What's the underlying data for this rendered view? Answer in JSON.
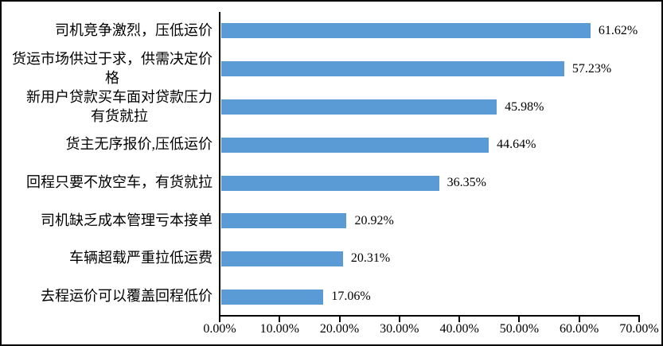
{
  "chart_data": {
    "type": "bar",
    "orientation": "horizontal",
    "title": "",
    "categories": [
      "司机竞争激烈，压低运价",
      "货运市场供过于求，供需决定价\n格",
      "新用户贷款买车面对贷款压力\n有货就拉",
      "货主无序报价,压低运价",
      "回程只要不放空车，有货就拉",
      "司机缺乏成本管理亏本接单",
      "车辆超载严重拉低运费",
      "去程运价可以覆盖回程低价"
    ],
    "values": [
      61.62,
      57.23,
      45.98,
      44.64,
      36.35,
      20.92,
      20.31,
      17.06
    ],
    "value_labels": [
      "61.62%",
      "57.23%",
      "45.98%",
      "44.64%",
      "36.35%",
      "20.92%",
      "20.31%",
      "17.06%"
    ],
    "x_ticks": [
      "0.00%",
      "10.00%",
      "20.00%",
      "30.00%",
      "40.00%",
      "50.00%",
      "60.00%",
      "70.00%"
    ],
    "xlim": [
      0,
      70
    ],
    "x_tick_step": 10,
    "bar_color": "#5B9BD5",
    "axis_color": "#000000",
    "grid": "off",
    "legend": "none"
  }
}
